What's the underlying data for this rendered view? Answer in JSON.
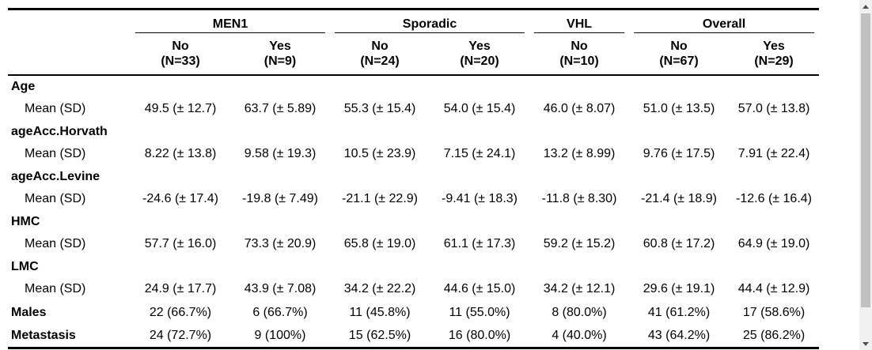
{
  "table": {
    "groups": [
      "MEN1",
      "Sporadic",
      "VHL",
      "Overall"
    ],
    "subheaders": [
      {
        "label": "No",
        "n": "(N=33)"
      },
      {
        "label": "Yes",
        "n": "(N=9)"
      },
      {
        "label": "No",
        "n": "(N=24)"
      },
      {
        "label": "Yes",
        "n": "(N=20)"
      },
      {
        "label": "No",
        "n": "(N=10)"
      },
      {
        "label": "No",
        "n": "(N=67)"
      },
      {
        "label": "Yes",
        "n": "(N=29)"
      }
    ],
    "variables": [
      {
        "name": "Age",
        "stat": "Mean (SD)",
        "values": [
          "49.5 (± 12.7)",
          "63.7 (± 5.89)",
          "55.3 (± 15.4)",
          "54.0 (± 15.4)",
          "46.0 (± 8.07)",
          "51.0 (± 13.5)",
          "57.0 (± 13.8)"
        ]
      },
      {
        "name": "ageAcc.Horvath",
        "stat": "Mean (SD)",
        "values": [
          "8.22 (± 13.8)",
          "9.58 (± 19.3)",
          "10.5 (± 23.9)",
          "7.15 (± 24.1)",
          "13.2 (± 8.99)",
          "9.76 (± 17.5)",
          "7.91 (± 22.4)"
        ]
      },
      {
        "name": "ageAcc.Levine",
        "stat": "Mean (SD)",
        "values": [
          "-24.6 (± 17.4)",
          "-19.8 (± 7.49)",
          "-21.1 (± 22.9)",
          "-9.41 (± 18.3)",
          "-11.8 (± 8.30)",
          "-21.4 (± 18.9)",
          "-12.6 (± 16.4)"
        ]
      },
      {
        "name": "HMC",
        "stat": "Mean (SD)",
        "values": [
          "57.7 (± 16.0)",
          "73.3 (± 20.9)",
          "65.8 (± 19.0)",
          "61.1 (± 17.3)",
          "59.2 (± 15.2)",
          "60.8 (± 17.2)",
          "64.9 (± 19.0)"
        ]
      },
      {
        "name": "LMC",
        "stat": "Mean (SD)",
        "values": [
          "24.9 (± 17.7)",
          "43.9 (± 7.08)",
          "34.2 (± 22.2)",
          "44.6 (± 15.0)",
          "34.2 (± 12.1)",
          "29.6 (± 19.1)",
          "44.4 (± 12.9)"
        ]
      }
    ],
    "single_rows": [
      {
        "name": "Males",
        "values": [
          "22 (66.7%)",
          "6 (66.7%)",
          "11 (45.8%)",
          "11 (55.0%)",
          "8 (80.0%)",
          "41 (61.2%)",
          "17 (58.6%)"
        ]
      },
      {
        "name": "Metastasis",
        "values": [
          "24 (72.7%)",
          "9 (100%)",
          "15 (62.5%)",
          "16 (80.0%)",
          "4 (40.0%)",
          "43 (64.2%)",
          "25 (86.2%)"
        ]
      }
    ]
  },
  "scrollbar": {
    "up_icon": "triangle-up",
    "down_icon": "triangle-down"
  }
}
